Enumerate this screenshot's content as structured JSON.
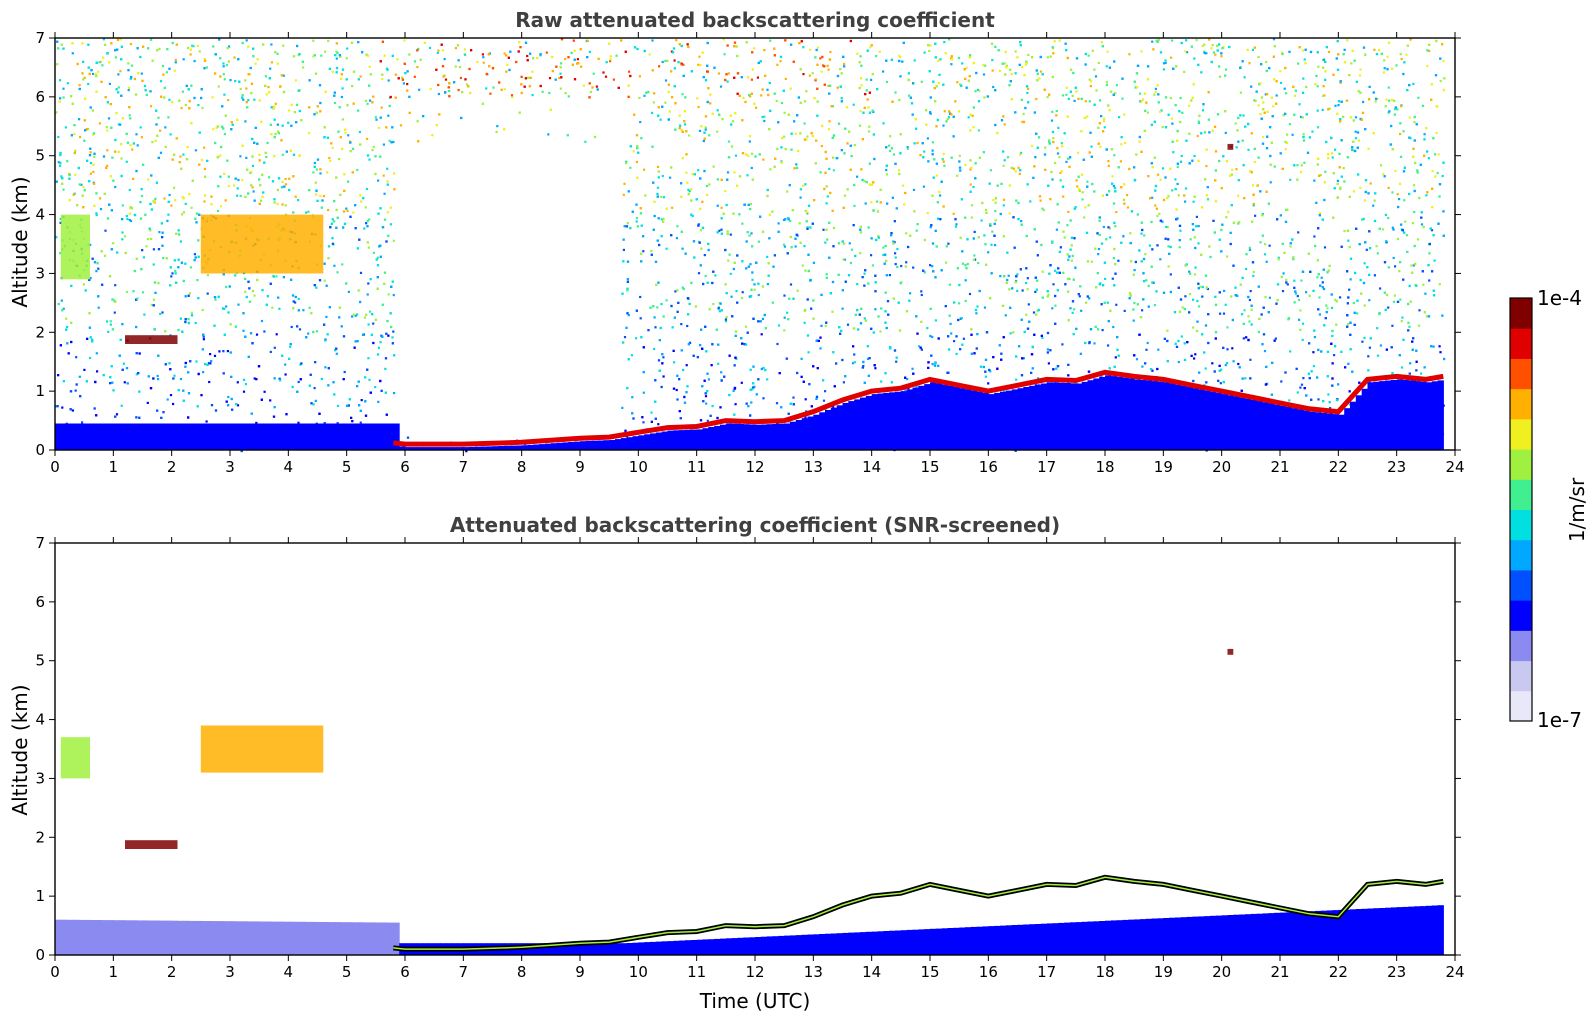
{
  "chart_data": [
    {
      "type": "heatmap",
      "title": "Raw attenuated backscattering coefficient",
      "xlabel": "",
      "ylabel": "Altitude (km)",
      "xlim": [
        0,
        24
      ],
      "ylim": [
        0,
        7
      ],
      "xticks": [
        "0",
        "1",
        "2",
        "3",
        "4",
        "5",
        "6",
        "7",
        "8",
        "9",
        "10",
        "11",
        "12",
        "13",
        "14",
        "15",
        "16",
        "17",
        "18",
        "19",
        "20",
        "21",
        "22",
        "23",
        "24"
      ],
      "yticks": [
        "0",
        "1",
        "2",
        "3",
        "4",
        "5",
        "6",
        "7"
      ],
      "data_coverage_hours": [
        0,
        23.8
      ],
      "no_signal_region": {
        "time": [
          5.8,
          9.7
        ],
        "altitude_km": [
          0.25,
          6.0
        ]
      },
      "cloud_top_altitude_km": [
        [
          5.8,
          0.12
        ],
        [
          6,
          0.1
        ],
        [
          7,
          0.1
        ],
        [
          8,
          0.13
        ],
        [
          9,
          0.2
        ],
        [
          9.5,
          0.22
        ],
        [
          10,
          0.3
        ],
        [
          10.5,
          0.38
        ],
        [
          11,
          0.4
        ],
        [
          11.5,
          0.5
        ],
        [
          12,
          0.48
        ],
        [
          12.5,
          0.5
        ],
        [
          13,
          0.65
        ],
        [
          13.5,
          0.85
        ],
        [
          14,
          1.0
        ],
        [
          14.5,
          1.05
        ],
        [
          15,
          1.2
        ],
        [
          15.5,
          1.1
        ],
        [
          16,
          1.0
        ],
        [
          16.5,
          1.1
        ],
        [
          17,
          1.2
        ],
        [
          17.5,
          1.18
        ],
        [
          18,
          1.32
        ],
        [
          18.5,
          1.25
        ],
        [
          19,
          1.2
        ],
        [
          19.5,
          1.1
        ],
        [
          20,
          1.0
        ],
        [
          20.5,
          0.9
        ],
        [
          21,
          0.8
        ],
        [
          21.5,
          0.7
        ],
        [
          22,
          0.65
        ],
        [
          22.5,
          1.2
        ],
        [
          23,
          1.25
        ],
        [
          23.5,
          1.2
        ],
        [
          23.8,
          1.25
        ]
      ],
      "features": [
        {
          "time": [
            1.2,
            2.1
          ],
          "altitude_km": [
            1.8,
            1.95
          ],
          "level": "1e-4"
        },
        {
          "time": [
            0.1,
            0.6
          ],
          "altitude_km": [
            2.9,
            4.0
          ],
          "level": "1e-5"
        },
        {
          "time": [
            2.5,
            4.6
          ],
          "altitude_km": [
            3.0,
            4.0
          ],
          "level": "3e-5"
        },
        {
          "time": [
            20.1,
            20.2
          ],
          "altitude_km": [
            5.1,
            5.2
          ],
          "level": "1e-4"
        }
      ]
    },
    {
      "type": "heatmap",
      "title": "Attenuated backscattering coefficient (SNR-screened)",
      "xlabel": "Time (UTC)",
      "ylabel": "Altitude (km)",
      "xlim": [
        0,
        24
      ],
      "ylim": [
        0,
        7
      ],
      "xticks": [
        "0",
        "1",
        "2",
        "3",
        "4",
        "5",
        "6",
        "7",
        "8",
        "9",
        "10",
        "11",
        "12",
        "13",
        "14",
        "15",
        "16",
        "17",
        "18",
        "19",
        "20",
        "21",
        "22",
        "23",
        "24"
      ],
      "yticks": [
        "0",
        "1",
        "2",
        "3",
        "4",
        "5",
        "6",
        "7"
      ],
      "boundary_layer_top_km": [
        [
          0,
          0.6
        ],
        [
          5.8,
          0.55
        ],
        [
          5.81,
          0.2
        ],
        [
          9.7,
          0.2
        ],
        [
          23.8,
          0.85
        ]
      ],
      "features": [
        {
          "time": [
            1.2,
            2.1
          ],
          "altitude_km": [
            1.8,
            1.95
          ],
          "level": "1e-4"
        },
        {
          "time": [
            0.1,
            0.6
          ],
          "altitude_km": [
            3.0,
            3.7
          ],
          "level": "1e-5"
        },
        {
          "time": [
            2.5,
            4.6
          ],
          "altitude_km": [
            3.1,
            3.9
          ],
          "level": "3e-5"
        },
        {
          "time": [
            20.1,
            20.2
          ],
          "altitude_km": [
            5.1,
            5.2
          ],
          "level": "1e-4"
        }
      ]
    }
  ],
  "colorbar": {
    "label": "1/m/sr",
    "max_label": "1e-4",
    "min_label": "1e-7",
    "colormap": [
      "#e8e8f8",
      "#c8c8f0",
      "#8a8af0",
      "#0000ff",
      "#0050ff",
      "#00a8ff",
      "#00e0e0",
      "#40f090",
      "#a0f040",
      "#f0f020",
      "#ffb000",
      "#ff5000",
      "#e00000",
      "#800000"
    ]
  }
}
